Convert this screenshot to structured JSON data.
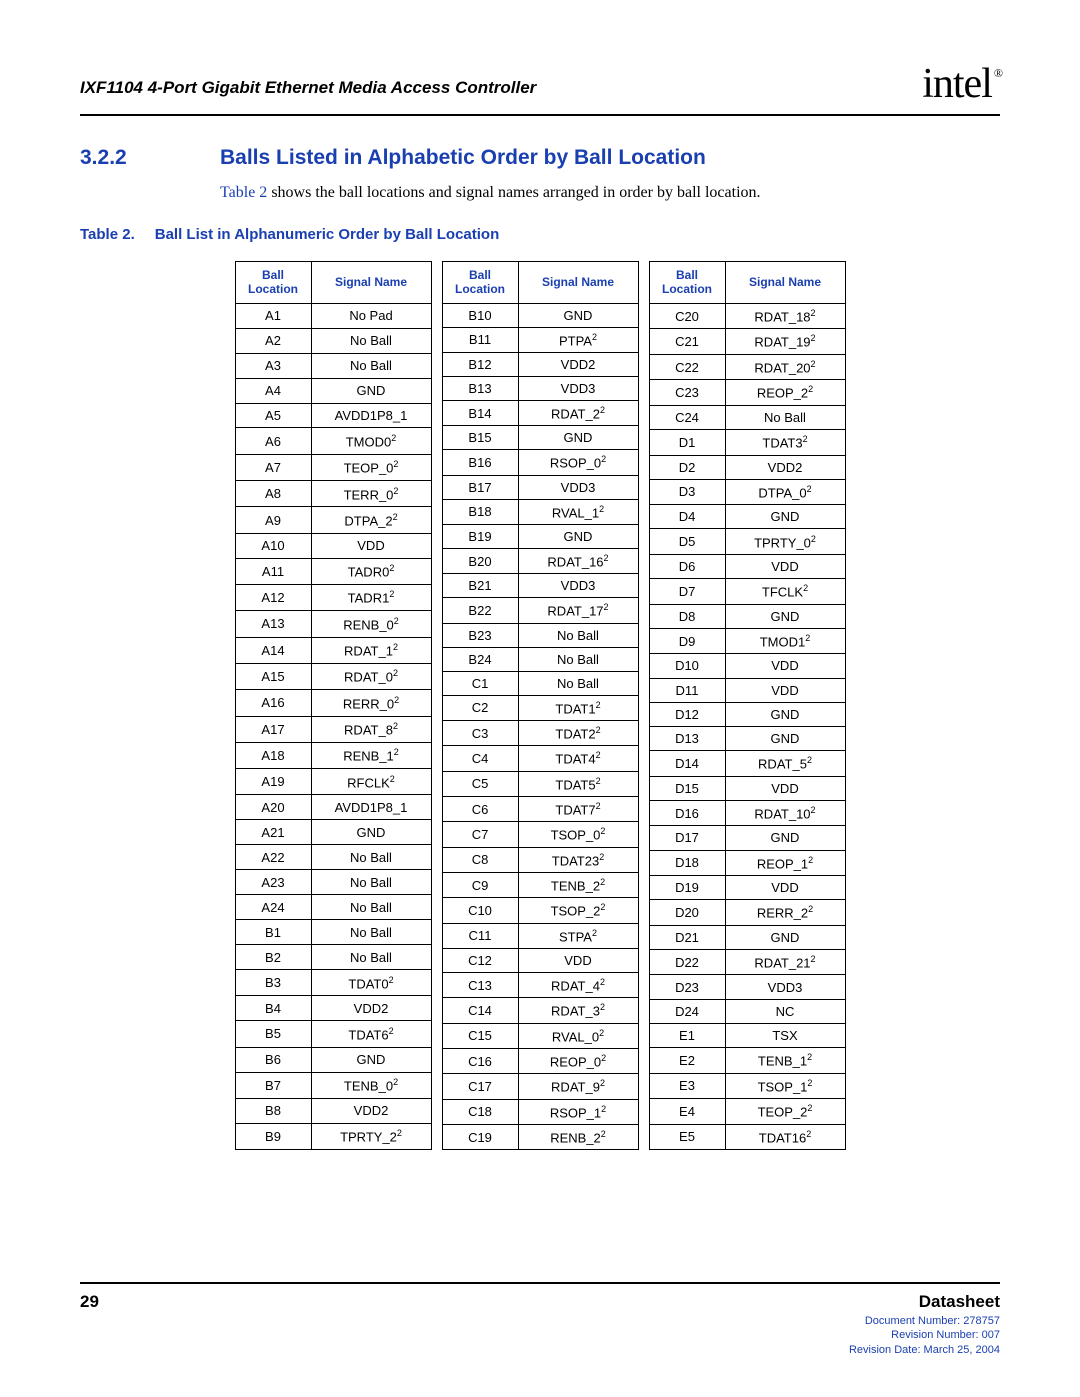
{
  "header": {
    "doc_title": "IXF1104 4-Port Gigabit Ethernet Media Access Controller",
    "logo_text": "intel",
    "logo_mark": "®"
  },
  "section": {
    "number": "3.2.2",
    "title": "Balls Listed in Alphabetic Order by Ball Location",
    "intro_link": "Table 2",
    "intro_rest": " shows the ball locations and signal names arranged in order by ball location."
  },
  "caption": {
    "label": "Table 2.",
    "text": "Ball List in Alphanumeric Order by Ball Location"
  },
  "columns": {
    "ball_loc_1": "Ball",
    "ball_loc_2": "Location",
    "signal": "Signal Name"
  },
  "tables": [
    [
      {
        "loc": "A1",
        "sig": "No Pad",
        "sup": ""
      },
      {
        "loc": "A2",
        "sig": "No Ball",
        "sup": ""
      },
      {
        "loc": "A3",
        "sig": "No Ball",
        "sup": ""
      },
      {
        "loc": "A4",
        "sig": "GND",
        "sup": ""
      },
      {
        "loc": "A5",
        "sig": "AVDD1P8_1",
        "sup": ""
      },
      {
        "loc": "A6",
        "sig": "TMOD0",
        "sup": "2"
      },
      {
        "loc": "A7",
        "sig": "TEOP_0",
        "sup": "2"
      },
      {
        "loc": "A8",
        "sig": "TERR_0",
        "sup": "2"
      },
      {
        "loc": "A9",
        "sig": "DTPA_2",
        "sup": "2"
      },
      {
        "loc": "A10",
        "sig": "VDD",
        "sup": ""
      },
      {
        "loc": "A11",
        "sig": "TADR0",
        "sup": "2"
      },
      {
        "loc": "A12",
        "sig": "TADR1",
        "sup": "2"
      },
      {
        "loc": "A13",
        "sig": "RENB_0",
        "sup": "2"
      },
      {
        "loc": "A14",
        "sig": "RDAT_1",
        "sup": "2"
      },
      {
        "loc": "A15",
        "sig": "RDAT_0",
        "sup": "2"
      },
      {
        "loc": "A16",
        "sig": "RERR_0",
        "sup": "2"
      },
      {
        "loc": "A17",
        "sig": "RDAT_8",
        "sup": "2"
      },
      {
        "loc": "A18",
        "sig": "RENB_1",
        "sup": "2"
      },
      {
        "loc": "A19",
        "sig": "RFCLK",
        "sup": "2"
      },
      {
        "loc": "A20",
        "sig": "AVDD1P8_1",
        "sup": ""
      },
      {
        "loc": "A21",
        "sig": "GND",
        "sup": ""
      },
      {
        "loc": "A22",
        "sig": "No Ball",
        "sup": ""
      },
      {
        "loc": "A23",
        "sig": "No Ball",
        "sup": ""
      },
      {
        "loc": "A24",
        "sig": "No Ball",
        "sup": ""
      },
      {
        "loc": "B1",
        "sig": "No Ball",
        "sup": ""
      },
      {
        "loc": "B2",
        "sig": "No Ball",
        "sup": ""
      },
      {
        "loc": "B3",
        "sig": "TDAT0",
        "sup": "2"
      },
      {
        "loc": "B4",
        "sig": "VDD2",
        "sup": ""
      },
      {
        "loc": "B5",
        "sig": "TDAT6",
        "sup": "2"
      },
      {
        "loc": "B6",
        "sig": "GND",
        "sup": ""
      },
      {
        "loc": "B7",
        "sig": "TENB_0",
        "sup": "2"
      },
      {
        "loc": "B8",
        "sig": "VDD2",
        "sup": ""
      },
      {
        "loc": "B9",
        "sig": "TPRTY_2",
        "sup": "2"
      }
    ],
    [
      {
        "loc": "B10",
        "sig": "GND",
        "sup": ""
      },
      {
        "loc": "B11",
        "sig": "PTPA",
        "sup": "2"
      },
      {
        "loc": "B12",
        "sig": "VDD2",
        "sup": ""
      },
      {
        "loc": "B13",
        "sig": "VDD3",
        "sup": ""
      },
      {
        "loc": "B14",
        "sig": "RDAT_2",
        "sup": "2"
      },
      {
        "loc": "B15",
        "sig": "GND",
        "sup": ""
      },
      {
        "loc": "B16",
        "sig": "RSOP_0",
        "sup": "2"
      },
      {
        "loc": "B17",
        "sig": "VDD3",
        "sup": ""
      },
      {
        "loc": "B18",
        "sig": "RVAL_1",
        "sup": "2"
      },
      {
        "loc": "B19",
        "sig": "GND",
        "sup": ""
      },
      {
        "loc": "B20",
        "sig": "RDAT_16",
        "sup": "2"
      },
      {
        "loc": "B21",
        "sig": "VDD3",
        "sup": ""
      },
      {
        "loc": "B22",
        "sig": "RDAT_17",
        "sup": "2"
      },
      {
        "loc": "B23",
        "sig": "No Ball",
        "sup": ""
      },
      {
        "loc": "B24",
        "sig": "No Ball",
        "sup": ""
      },
      {
        "loc": "C1",
        "sig": "No Ball",
        "sup": ""
      },
      {
        "loc": "C2",
        "sig": "TDAT1",
        "sup": "2"
      },
      {
        "loc": "C3",
        "sig": "TDAT2",
        "sup": "2"
      },
      {
        "loc": "C4",
        "sig": "TDAT4",
        "sup": "2"
      },
      {
        "loc": "C5",
        "sig": "TDAT5",
        "sup": "2"
      },
      {
        "loc": "C6",
        "sig": "TDAT7",
        "sup": "2"
      },
      {
        "loc": "C7",
        "sig": "TSOP_0",
        "sup": "2"
      },
      {
        "loc": "C8",
        "sig": "TDAT23",
        "sup": "2"
      },
      {
        "loc": "C9",
        "sig": "TENB_2",
        "sup": "2"
      },
      {
        "loc": "C10",
        "sig": "TSOP_2",
        "sup": "2"
      },
      {
        "loc": "C11",
        "sig": "STPA",
        "sup": "2"
      },
      {
        "loc": "C12",
        "sig": "VDD",
        "sup": ""
      },
      {
        "loc": "C13",
        "sig": "RDAT_4",
        "sup": "2"
      },
      {
        "loc": "C14",
        "sig": "RDAT_3",
        "sup": "2"
      },
      {
        "loc": "C15",
        "sig": "RVAL_0",
        "sup": "2"
      },
      {
        "loc": "C16",
        "sig": "REOP_0",
        "sup": "2"
      },
      {
        "loc": "C17",
        "sig": "RDAT_9",
        "sup": "2"
      },
      {
        "loc": "C18",
        "sig": "RSOP_1",
        "sup": "2"
      },
      {
        "loc": "C19",
        "sig": "RENB_2",
        "sup": "2"
      }
    ],
    [
      {
        "loc": "C20",
        "sig": "RDAT_18",
        "sup": "2"
      },
      {
        "loc": "C21",
        "sig": "RDAT_19",
        "sup": "2"
      },
      {
        "loc": "C22",
        "sig": "RDAT_20",
        "sup": "2"
      },
      {
        "loc": "C23",
        "sig": "REOP_2",
        "sup": "2"
      },
      {
        "loc": "C24",
        "sig": "No Ball",
        "sup": ""
      },
      {
        "loc": "D1",
        "sig": "TDAT3",
        "sup": "2"
      },
      {
        "loc": "D2",
        "sig": "VDD2",
        "sup": ""
      },
      {
        "loc": "D3",
        "sig": "DTPA_0",
        "sup": "2"
      },
      {
        "loc": "D4",
        "sig": "GND",
        "sup": ""
      },
      {
        "loc": "D5",
        "sig": "TPRTY_0",
        "sup": "2"
      },
      {
        "loc": "D6",
        "sig": "VDD",
        "sup": ""
      },
      {
        "loc": "D7",
        "sig": "TFCLK",
        "sup": "2"
      },
      {
        "loc": "D8",
        "sig": "GND",
        "sup": ""
      },
      {
        "loc": "D9",
        "sig": "TMOD1",
        "sup": "2"
      },
      {
        "loc": "D10",
        "sig": "VDD",
        "sup": ""
      },
      {
        "loc": "D11",
        "sig": "VDD",
        "sup": ""
      },
      {
        "loc": "D12",
        "sig": "GND",
        "sup": ""
      },
      {
        "loc": "D13",
        "sig": "GND",
        "sup": ""
      },
      {
        "loc": "D14",
        "sig": "RDAT_5",
        "sup": "2"
      },
      {
        "loc": "D15",
        "sig": "VDD",
        "sup": ""
      },
      {
        "loc": "D16",
        "sig": "RDAT_10",
        "sup": "2"
      },
      {
        "loc": "D17",
        "sig": "GND",
        "sup": ""
      },
      {
        "loc": "D18",
        "sig": "REOP_1",
        "sup": "2"
      },
      {
        "loc": "D19",
        "sig": "VDD",
        "sup": ""
      },
      {
        "loc": "D20",
        "sig": "RERR_2",
        "sup": "2"
      },
      {
        "loc": "D21",
        "sig": "GND",
        "sup": ""
      },
      {
        "loc": "D22",
        "sig": "RDAT_21",
        "sup": "2"
      },
      {
        "loc": "D23",
        "sig": "VDD3",
        "sup": ""
      },
      {
        "loc": "D24",
        "sig": "NC",
        "sup": ""
      },
      {
        "loc": "E1",
        "sig": "TSX",
        "sup": ""
      },
      {
        "loc": "E2",
        "sig": "TENB_1",
        "sup": "2"
      },
      {
        "loc": "E3",
        "sig": "TSOP_1",
        "sup": "2"
      },
      {
        "loc": "E4",
        "sig": "TEOP_2",
        "sup": "2"
      },
      {
        "loc": "E5",
        "sig": "TDAT16",
        "sup": "2"
      }
    ]
  ],
  "footer": {
    "page": "29",
    "label": "Datasheet",
    "doc_num": "Document Number: 278757",
    "rev_num": "Revision Number: 007",
    "rev_date": "Revision Date: March 25, 2004"
  }
}
